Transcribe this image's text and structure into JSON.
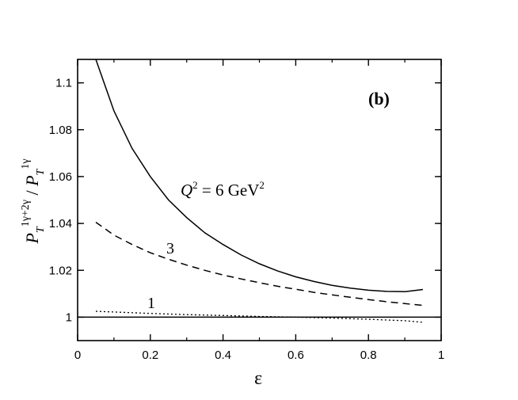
{
  "chart_data": {
    "type": "line",
    "panel_label": "(b)",
    "xlabel": "ε",
    "ylabel": {
      "main_a": "P",
      "sub_a": "T",
      "sup_a": "1γ+2γ",
      "slash": " / ",
      "main_b": "P",
      "sub_b": "T",
      "sup_b": "1γ"
    },
    "xlim": [
      0,
      1
    ],
    "ylim": [
      0.99,
      1.11
    ],
    "x_ticks": [
      0,
      0.2,
      0.4,
      0.6,
      0.8,
      1
    ],
    "x_tick_labels": [
      "0",
      "0.2",
      "0.4",
      "0.6",
      "0.8",
      "1"
    ],
    "y_ticks": [
      1,
      1.02,
      1.04,
      1.06,
      1.08,
      1.1
    ],
    "y_tick_labels": [
      "1",
      "1.02",
      "1.04",
      "1.06",
      "1.08",
      "1.1"
    ],
    "grid": false,
    "reference_line": {
      "y": 1,
      "style": "solid"
    },
    "series": [
      {
        "name": "Q² = 6 GeV²",
        "label_parts": {
          "q": "Q",
          "q_sup": "2",
          "mid": " = 6 GeV",
          "unit_sup": "2"
        },
        "style": "solid",
        "x": [
          0.05,
          0.1,
          0.15,
          0.2,
          0.25,
          0.3,
          0.35,
          0.4,
          0.45,
          0.5,
          0.55,
          0.6,
          0.65,
          0.7,
          0.75,
          0.8,
          0.85,
          0.9,
          0.95
        ],
        "y": [
          1.11,
          1.088,
          1.072,
          1.06,
          1.05,
          1.0425,
          1.036,
          1.031,
          1.0265,
          1.0228,
          1.0197,
          1.0172,
          1.0152,
          1.0136,
          1.0124,
          1.0115,
          1.011,
          1.0109,
          1.0118
        ]
      },
      {
        "name": "3",
        "label_parts": {
          "text": "3"
        },
        "style": "dashed",
        "x": [
          0.05,
          0.1,
          0.15,
          0.2,
          0.25,
          0.3,
          0.35,
          0.4,
          0.45,
          0.5,
          0.55,
          0.6,
          0.65,
          0.7,
          0.75,
          0.8,
          0.85,
          0.9,
          0.95
        ],
        "y": [
          1.0405,
          1.035,
          1.031,
          1.0275,
          1.0247,
          1.0222,
          1.02,
          1.018,
          1.0163,
          1.0147,
          1.0132,
          1.0119,
          1.0106,
          1.0095,
          1.0085,
          1.0075,
          1.0066,
          1.0058,
          1.005
        ]
      },
      {
        "name": "1",
        "label_parts": {
          "text": "1"
        },
        "style": "dotted",
        "x": [
          0.05,
          0.1,
          0.2,
          0.3,
          0.4,
          0.5,
          0.6,
          0.7,
          0.8,
          0.9,
          0.95
        ],
        "y": [
          1.0025,
          1.0022,
          1.0016,
          1.0011,
          1.0007,
          1.0003,
          1.0,
          0.9996,
          0.9991,
          0.9985,
          0.9978
        ]
      }
    ]
  }
}
